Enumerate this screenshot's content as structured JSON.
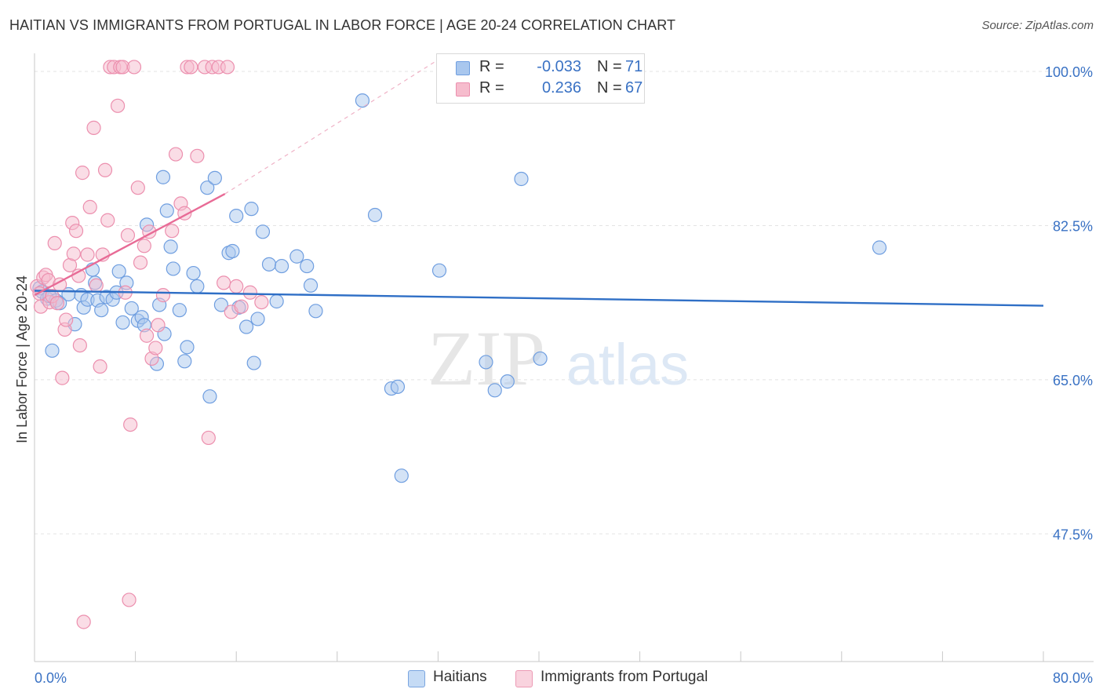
{
  "title": "HAITIAN VS IMMIGRANTS FROM PORTUGAL IN LABOR FORCE | AGE 20-24 CORRELATION CHART",
  "source": "Source: ZipAtlas.com",
  "watermark": {
    "zip": "ZIP",
    "atlas": "atlas"
  },
  "legend": {
    "r_label": "R =",
    "n_label": "N =",
    "series": [
      {
        "r": "-0.033",
        "n": "71",
        "color": "#a9c7ee",
        "border": "#6f9ee0"
      },
      {
        "r": "0.236",
        "n": "67",
        "color": "#f6bccd",
        "border": "#ec8fae"
      }
    ]
  },
  "bottom_legend": [
    {
      "label": "Haitians",
      "color": "#c5dbf5",
      "border": "#7aa5e0"
    },
    {
      "label": "Immigrants from Portugal",
      "color": "#f9d3de",
      "border": "#ec9ab5"
    }
  ],
  "chart_data": {
    "type": "scatter",
    "title": "HAITIAN VS IMMIGRANTS FROM PORTUGAL IN LABOR FORCE | AGE 20-24 CORRELATION CHART",
    "xlabel": "",
    "ylabel": "In Labor Force | Age 20-24",
    "xlim": [
      0,
      80
    ],
    "ylim": [
      33,
      102.5
    ],
    "x_tick_labels": [
      {
        "value": 0,
        "label": "0.0%"
      },
      {
        "value": 80,
        "label": "80.0%"
      }
    ],
    "y_tick_labels": [
      {
        "value": 100,
        "label": "100.0%"
      },
      {
        "value": 82.5,
        "label": "82.5%"
      },
      {
        "value": 65,
        "label": "65.0%"
      },
      {
        "value": 47.5,
        "label": "47.5%"
      }
    ],
    "grid": true,
    "series": [
      {
        "name": "Haitians",
        "color": "#a9c7ee",
        "stroke": "#6f9ee0",
        "line_color": "#2f6fc6",
        "trend": {
          "x": [
            0,
            80
          ],
          "y": [
            75.1,
            73.4
          ]
        },
        "points": [
          [
            0.4,
            75.4
          ],
          [
            0.6,
            75.0
          ],
          [
            1.0,
            74.2
          ],
          [
            1.2,
            74.5
          ],
          [
            1.4,
            68.3
          ],
          [
            1.7,
            74.0
          ],
          [
            2.0,
            73.7
          ],
          [
            2.7,
            74.7
          ],
          [
            3.2,
            71.3
          ],
          [
            3.7,
            74.6
          ],
          [
            3.9,
            73.2
          ],
          [
            4.2,
            74.1
          ],
          [
            4.6,
            77.5
          ],
          [
            4.8,
            76.0
          ],
          [
            5.0,
            74.0
          ],
          [
            5.3,
            72.9
          ],
          [
            5.7,
            74.4
          ],
          [
            6.2,
            74.1
          ],
          [
            6.5,
            74.9
          ],
          [
            6.7,
            77.3
          ],
          [
            7.0,
            71.5
          ],
          [
            7.3,
            76.0
          ],
          [
            7.7,
            73.1
          ],
          [
            8.2,
            71.7
          ],
          [
            8.5,
            72.1
          ],
          [
            8.7,
            71.2
          ],
          [
            8.9,
            82.6
          ],
          [
            9.7,
            66.8
          ],
          [
            9.9,
            73.5
          ],
          [
            10.2,
            88.0
          ],
          [
            10.3,
            70.2
          ],
          [
            10.5,
            84.2
          ],
          [
            10.8,
            80.1
          ],
          [
            11.0,
            77.6
          ],
          [
            11.5,
            72.9
          ],
          [
            11.9,
            67.1
          ],
          [
            12.1,
            68.7
          ],
          [
            12.6,
            77.1
          ],
          [
            12.9,
            75.6
          ],
          [
            13.7,
            86.8
          ],
          [
            13.9,
            63.1
          ],
          [
            14.3,
            87.9
          ],
          [
            14.8,
            73.5
          ],
          [
            15.4,
            79.4
          ],
          [
            15.7,
            79.6
          ],
          [
            16.0,
            83.6
          ],
          [
            16.2,
            73.2
          ],
          [
            16.8,
            71.0
          ],
          [
            17.2,
            84.4
          ],
          [
            17.4,
            66.9
          ],
          [
            17.7,
            71.9
          ],
          [
            18.1,
            81.8
          ],
          [
            18.6,
            78.1
          ],
          [
            19.2,
            73.9
          ],
          [
            19.6,
            77.9
          ],
          [
            20.8,
            79.0
          ],
          [
            21.6,
            77.9
          ],
          [
            21.9,
            75.7
          ],
          [
            22.3,
            72.8
          ],
          [
            26.0,
            96.7
          ],
          [
            27.0,
            83.7
          ],
          [
            28.3,
            64.0
          ],
          [
            28.8,
            64.2
          ],
          [
            29.1,
            54.1
          ],
          [
            32.1,
            77.4
          ],
          [
            35.8,
            67.0
          ],
          [
            36.5,
            63.8
          ],
          [
            37.5,
            64.8
          ],
          [
            38.6,
            87.8
          ],
          [
            40.1,
            67.4
          ],
          [
            67.0,
            80.0
          ]
        ]
      },
      {
        "name": "Immigrants from Portugal",
        "color": "#f6bccd",
        "stroke": "#ec8fae",
        "line_color": "#e86b96",
        "trend": {
          "x": [
            0,
            15.1
          ],
          "y": [
            74.6,
            86.1
          ]
        },
        "trend_dashed": {
          "x": [
            15.1,
            32.2
          ],
          "y": [
            86.1,
            101.5
          ]
        },
        "points": [
          [
            0.2,
            75.6
          ],
          [
            0.4,
            74.8
          ],
          [
            0.5,
            73.3
          ],
          [
            0.7,
            76.6
          ],
          [
            0.9,
            76.9
          ],
          [
            1.1,
            76.3
          ],
          [
            1.2,
            73.8
          ],
          [
            1.4,
            74.5
          ],
          [
            1.6,
            80.5
          ],
          [
            1.8,
            73.7
          ],
          [
            2.0,
            75.8
          ],
          [
            2.2,
            65.2
          ],
          [
            2.4,
            70.7
          ],
          [
            2.5,
            71.8
          ],
          [
            2.8,
            78.0
          ],
          [
            3.0,
            82.8
          ],
          [
            3.1,
            79.3
          ],
          [
            3.3,
            81.9
          ],
          [
            3.5,
            76.8
          ],
          [
            3.6,
            68.9
          ],
          [
            3.8,
            88.5
          ],
          [
            3.9,
            37.5
          ],
          [
            4.2,
            79.2
          ],
          [
            4.4,
            84.6
          ],
          [
            4.7,
            93.6
          ],
          [
            4.9,
            75.7
          ],
          [
            5.2,
            66.5
          ],
          [
            5.4,
            79.2
          ],
          [
            5.6,
            88.8
          ],
          [
            5.8,
            83.1
          ],
          [
            6.0,
            100.5
          ],
          [
            6.3,
            100.5
          ],
          [
            6.6,
            96.1
          ],
          [
            6.8,
            100.5
          ],
          [
            7.0,
            100.5
          ],
          [
            7.2,
            74.9
          ],
          [
            7.4,
            81.4
          ],
          [
            7.5,
            40.0
          ],
          [
            7.6,
            59.9
          ],
          [
            7.9,
            100.5
          ],
          [
            8.2,
            86.8
          ],
          [
            8.4,
            78.3
          ],
          [
            8.7,
            80.2
          ],
          [
            8.9,
            70.0
          ],
          [
            9.1,
            81.8
          ],
          [
            9.3,
            67.4
          ],
          [
            9.6,
            68.6
          ],
          [
            9.8,
            71.2
          ],
          [
            10.2,
            74.6
          ],
          [
            10.9,
            81.9
          ],
          [
            11.2,
            90.6
          ],
          [
            11.6,
            85.0
          ],
          [
            11.9,
            83.9
          ],
          [
            12.1,
            100.5
          ],
          [
            12.4,
            100.5
          ],
          [
            12.9,
            90.4
          ],
          [
            13.5,
            100.5
          ],
          [
            13.8,
            58.4
          ],
          [
            14.1,
            100.5
          ],
          [
            14.6,
            100.5
          ],
          [
            15.0,
            76.0
          ],
          [
            15.3,
            100.5
          ],
          [
            15.6,
            72.7
          ],
          [
            16.0,
            75.6
          ],
          [
            16.4,
            73.3
          ],
          [
            17.1,
            74.9
          ],
          [
            18.0,
            73.8
          ]
        ]
      }
    ]
  }
}
